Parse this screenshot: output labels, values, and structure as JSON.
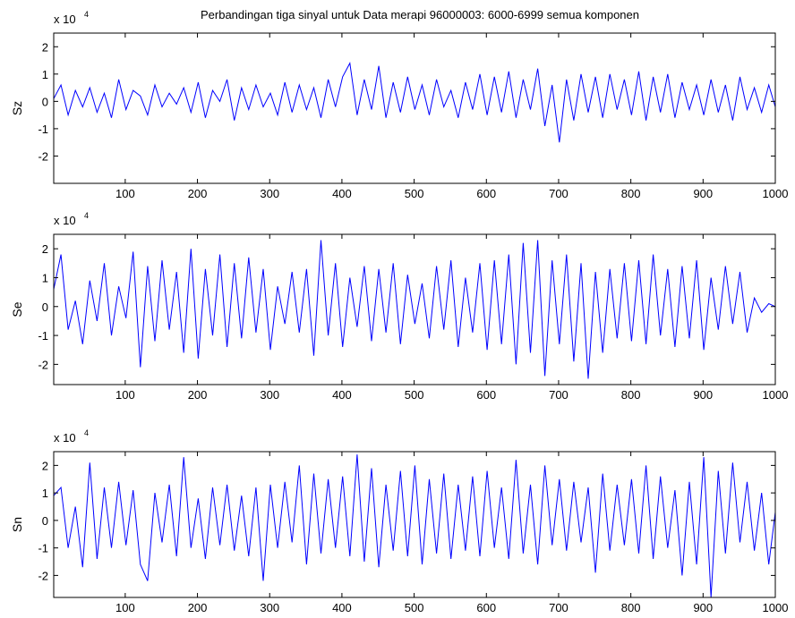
{
  "figure": {
    "title": "Perbandingan tiga sinyal untuk Data merapi 96000003: 6000-6999 semua komponen",
    "line_color": "#0000ff"
  },
  "chart_data": [
    {
      "type": "line",
      "ylabel": "Sz",
      "multiplier_base": "x 10",
      "multiplier_exp": "4",
      "xlim": [
        1,
        1000
      ],
      "ylim": [
        -3,
        2.5
      ],
      "xticks": [
        100,
        200,
        300,
        400,
        500,
        600,
        700,
        800,
        900,
        1000
      ],
      "yticks": [
        -2,
        -1,
        0,
        1,
        2
      ],
      "grid": false,
      "x_step": 10,
      "values": [
        0.1,
        0.6,
        -0.5,
        0.4,
        -0.2,
        0.5,
        -0.4,
        0.3,
        -0.6,
        0.8,
        -0.3,
        0.4,
        0.2,
        -0.5,
        0.6,
        -0.2,
        0.3,
        -0.1,
        0.5,
        -0.4,
        0.7,
        -0.6,
        0.4,
        0.0,
        0.8,
        -0.7,
        0.5,
        -0.3,
        0.6,
        -0.2,
        0.3,
        -0.5,
        0.7,
        -0.4,
        0.6,
        -0.3,
        0.5,
        -0.6,
        0.8,
        -0.2,
        0.9,
        1.4,
        -0.5,
        0.8,
        -0.3,
        1.3,
        -0.6,
        0.7,
        -0.4,
        0.9,
        -0.3,
        0.6,
        -0.5,
        0.8,
        -0.2,
        0.4,
        -0.6,
        0.7,
        -0.3,
        1.0,
        -0.5,
        0.9,
        -0.4,
        1.1,
        -0.6,
        0.8,
        -0.3,
        1.2,
        -0.9,
        0.6,
        -1.5,
        0.8,
        -0.7,
        1.0,
        -0.4,
        0.9,
        -0.6,
        1.0,
        -0.3,
        0.8,
        -0.5,
        1.1,
        -0.7,
        0.9,
        -0.4,
        1.0,
        -0.6,
        0.7,
        -0.3,
        0.6,
        -0.5,
        0.8,
        -0.4,
        0.6,
        -0.7,
        0.9,
        -0.3,
        0.5,
        -0.4,
        0.6,
        -0.2
      ]
    },
    {
      "type": "line",
      "ylabel": "Se",
      "multiplier_base": "x 10",
      "multiplier_exp": "4",
      "xlim": [
        1,
        1000
      ],
      "ylim": [
        -2.7,
        2.5
      ],
      "xticks": [
        100,
        200,
        300,
        400,
        500,
        600,
        700,
        800,
        900,
        1000
      ],
      "yticks": [
        -2,
        -1,
        0,
        1,
        2
      ],
      "grid": false,
      "x_step": 10,
      "values": [
        0.6,
        1.8,
        -0.8,
        0.2,
        -1.3,
        0.9,
        -0.5,
        1.5,
        -1.0,
        0.7,
        -0.4,
        1.9,
        -2.1,
        1.4,
        -1.2,
        1.6,
        -0.8,
        1.2,
        -1.6,
        2.0,
        -1.8,
        1.3,
        -1.0,
        1.8,
        -1.4,
        1.5,
        -1.1,
        1.7,
        -0.9,
        1.3,
        -1.5,
        0.7,
        -0.6,
        1.2,
        -0.9,
        1.3,
        -1.7,
        2.3,
        -1.0,
        1.5,
        -1.4,
        1.0,
        -0.7,
        1.4,
        -1.2,
        1.3,
        -0.9,
        1.5,
        -1.3,
        1.1,
        -0.6,
        0.8,
        -1.1,
        1.4,
        -0.8,
        1.6,
        -1.4,
        1.0,
        -0.9,
        1.5,
        -1.5,
        1.6,
        -1.3,
        1.8,
        -2.0,
        2.2,
        -1.6,
        2.3,
        -2.4,
        1.6,
        -1.3,
        1.8,
        -1.9,
        1.5,
        -2.5,
        1.2,
        -1.6,
        1.3,
        -1.1,
        1.5,
        -1.2,
        1.6,
        -1.3,
        1.8,
        -1.0,
        1.3,
        -1.4,
        1.4,
        -1.1,
        1.6,
        -1.5,
        1.0,
        -0.8,
        1.4,
        -0.6,
        1.2,
        -0.9,
        0.3,
        -0.2,
        0.1,
        0.0
      ]
    },
    {
      "type": "line",
      "ylabel": "Sn",
      "multiplier_base": "x 10",
      "multiplier_exp": "4",
      "xlim": [
        1,
        1000
      ],
      "ylim": [
        -2.8,
        2.5
      ],
      "xticks": [
        100,
        200,
        300,
        400,
        500,
        600,
        700,
        800,
        900,
        1000
      ],
      "yticks": [
        -2,
        -1,
        0,
        1,
        2
      ],
      "grid": false,
      "x_step": 10,
      "values": [
        0.9,
        1.2,
        -1.0,
        0.5,
        -1.7,
        2.1,
        -1.4,
        1.2,
        -1.0,
        1.4,
        -0.9,
        1.1,
        -1.6,
        -2.2,
        1.0,
        -0.8,
        1.3,
        -1.3,
        2.3,
        -1.0,
        0.8,
        -1.4,
        1.2,
        -0.9,
        1.3,
        -1.1,
        0.9,
        -1.3,
        1.2,
        -2.2,
        1.3,
        -1.0,
        1.4,
        -0.8,
        2.0,
        -1.6,
        1.7,
        -1.2,
        1.5,
        -1.0,
        1.6,
        -1.3,
        2.4,
        -1.5,
        1.9,
        -1.7,
        1.3,
        -1.1,
        1.8,
        -1.3,
        2.0,
        -1.6,
        1.5,
        -1.2,
        1.7,
        -1.4,
        1.3,
        -1.1,
        1.6,
        -1.3,
        1.8,
        -1.0,
        1.2,
        -1.4,
        2.2,
        -1.2,
        1.3,
        -1.6,
        2.0,
        -0.9,
        1.5,
        -1.1,
        1.4,
        -0.8,
        1.2,
        -1.9,
        1.7,
        -1.1,
        1.3,
        -0.9,
        1.5,
        -1.2,
        2.0,
        -1.4,
        1.6,
        -1.0,
        1.1,
        -2.0,
        1.4,
        -1.6,
        2.3,
        -2.8,
        1.8,
        -1.2,
        2.1,
        -0.8,
        1.4,
        -1.1,
        1.0,
        -1.6,
        0.3
      ]
    }
  ]
}
